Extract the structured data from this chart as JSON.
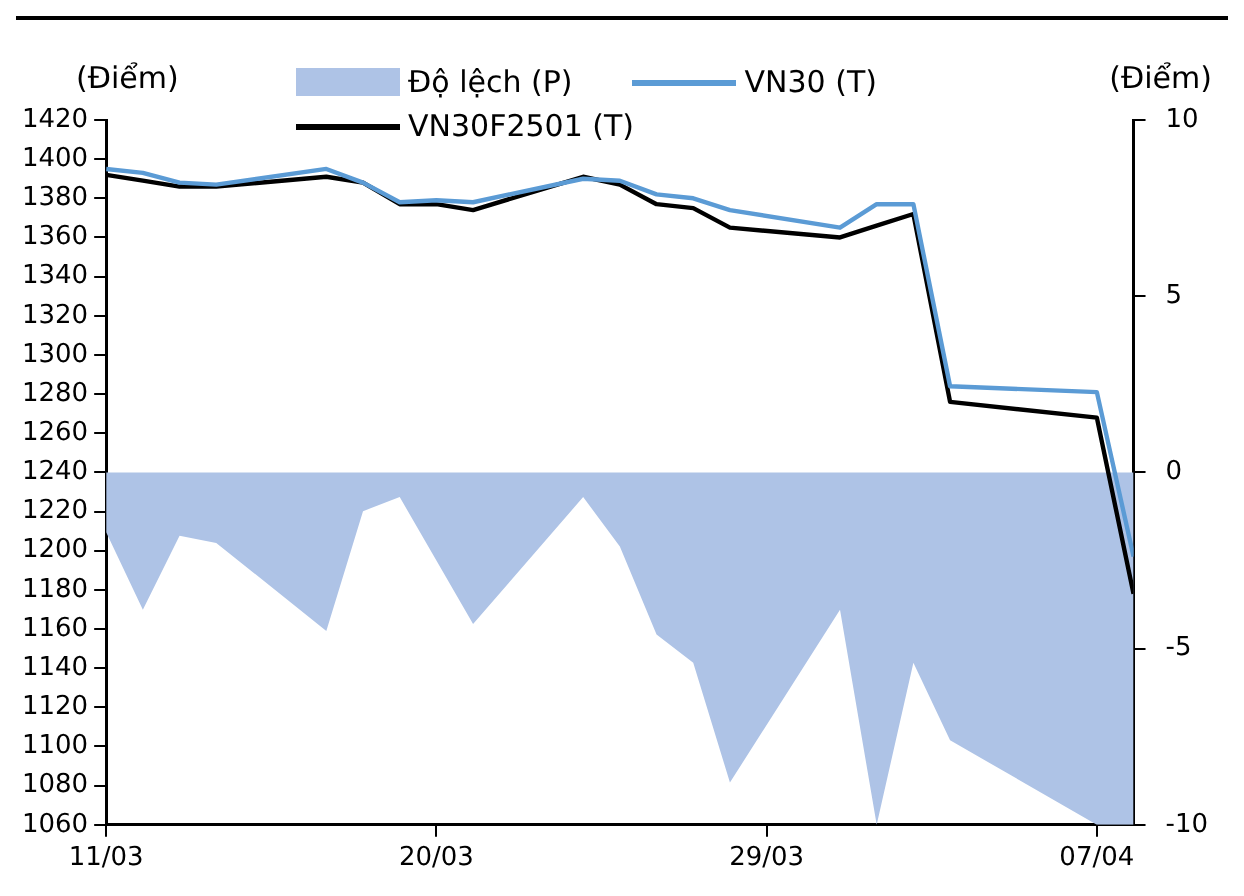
{
  "chart_data": {
    "type": "line",
    "ylabel": "(Điểm)",
    "y2label": "(Điểm)",
    "legend": "top",
    "grid": false,
    "x": [
      "--03-11",
      "--03-12",
      "--03-13",
      "--03-14",
      "--03-17",
      "--03-18",
      "--03-19",
      "--03-20",
      "--03-21",
      "--03-24",
      "--03-25",
      "--03-26",
      "--03-27",
      "--03-28",
      "--03-31",
      "--04-01",
      "--04-02",
      "--04-03",
      "--04-07",
      "--04-08"
    ],
    "xlim": [
      "--03-11",
      "--04-08"
    ],
    "xticks": [
      {
        "value": "--03-11",
        "label": "11/03"
      },
      {
        "value": "--03-20",
        "label": "20/03"
      },
      {
        "value": "--03-29",
        "label": "29/03"
      },
      {
        "value": "--04-07",
        "label": "07/04"
      }
    ],
    "ylim": [
      1060,
      1420
    ],
    "yticks": [
      1060,
      1080,
      1100,
      1120,
      1140,
      1160,
      1180,
      1200,
      1220,
      1240,
      1260,
      1280,
      1300,
      1320,
      1340,
      1360,
      1380,
      1400,
      1420
    ],
    "y2lim": [
      -10,
      10
    ],
    "y2ticks": [
      -10,
      -5,
      0,
      5,
      10
    ],
    "series": [
      {
        "name": "Độ lệch (P)",
        "type": "area",
        "axis": "y2",
        "color": "#aec3e6",
        "values": [
          -1.7,
          -3.9,
          -1.8,
          -2.0,
          -4.5,
          -1.1,
          -0.7,
          -2.5,
          -4.3,
          -0.7,
          -2.1,
          -4.6,
          -5.4,
          -8.8,
          -3.9,
          -10,
          -5.4,
          -7.6,
          -10,
          -10
        ]
      },
      {
        "name": "VN30 (T)",
        "type": "line",
        "color": "#5b9bd5",
        "values": [
          1395,
          1393,
          1388,
          1387,
          1395,
          1388,
          1378,
          1379,
          1378,
          1390,
          1389,
          1382,
          1380,
          1374,
          1365,
          1377,
          1377,
          1284,
          1281,
          1197
        ]
      },
      {
        "name": "VN30F2501 (T)",
        "type": "line",
        "color": "#000000",
        "values": [
          1392,
          1389,
          1386,
          1386,
          1391,
          1388,
          1377,
          1377,
          1374,
          1391,
          1387,
          1377,
          1375,
          1365,
          1360,
          1366,
          1372,
          1276,
          1268,
          1178
        ]
      }
    ]
  }
}
